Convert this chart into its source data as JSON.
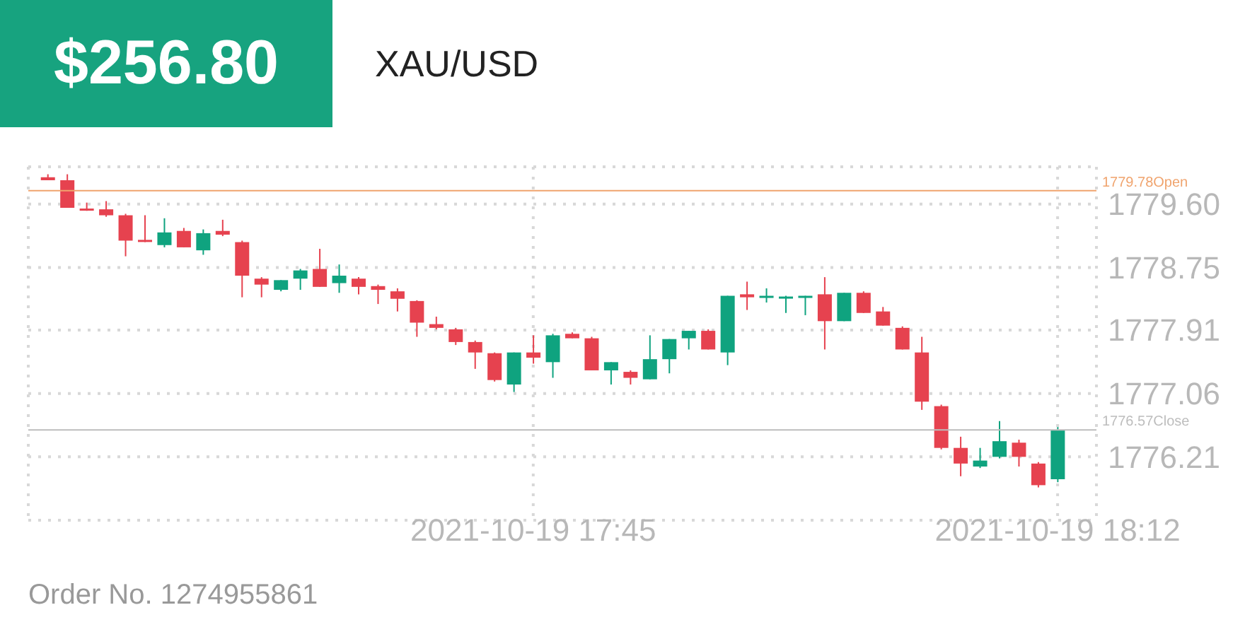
{
  "chart_data": {
    "type": "candlestick",
    "title": "XAU/USD",
    "annotations": [
      "$256.80",
      "Order No. 1274955861"
    ],
    "x": [
      "2021-10-19T17:20",
      "2021-10-19T17:21",
      "2021-10-19T17:22",
      "2021-10-19T17:23",
      "2021-10-19T17:24",
      "2021-10-19T17:25",
      "2021-10-19T17:26",
      "2021-10-19T17:27",
      "2021-10-19T17:28",
      "2021-10-19T17:29",
      "2021-10-19T17:30",
      "2021-10-19T17:31",
      "2021-10-19T17:32",
      "2021-10-19T17:33",
      "2021-10-19T17:34",
      "2021-10-19T17:35",
      "2021-10-19T17:36",
      "2021-10-19T17:37",
      "2021-10-19T17:38",
      "2021-10-19T17:39",
      "2021-10-19T17:40",
      "2021-10-19T17:41",
      "2021-10-19T17:42",
      "2021-10-19T17:43",
      "2021-10-19T17:44",
      "2021-10-19T17:45",
      "2021-10-19T17:46",
      "2021-10-19T17:47",
      "2021-10-19T17:48",
      "2021-10-19T17:49",
      "2021-10-19T17:50",
      "2021-10-19T17:51",
      "2021-10-19T17:52",
      "2021-10-19T17:53",
      "2021-10-19T17:54",
      "2021-10-19T17:55",
      "2021-10-19T17:56",
      "2021-10-19T17:57",
      "2021-10-19T17:58",
      "2021-10-19T17:59",
      "2021-10-19T18:00",
      "2021-10-19T18:01",
      "2021-10-19T18:02",
      "2021-10-19T18:03",
      "2021-10-19T18:04",
      "2021-10-19T18:05",
      "2021-10-19T18:06",
      "2021-10-19T18:07",
      "2021-10-19T18:08",
      "2021-10-19T18:09",
      "2021-10-19T18:10",
      "2021-10-19T18:11",
      "2021-10-19T18:12"
    ],
    "ohlc": [
      [
        1779.96,
        1780.0,
        1779.92,
        1779.92
      ],
      [
        1779.92,
        1780.0,
        1779.55,
        1779.55
      ],
      [
        1779.54,
        1779.62,
        1779.51,
        1779.52
      ],
      [
        1779.53,
        1779.64,
        1779.43,
        1779.45
      ],
      [
        1779.45,
        1779.47,
        1778.9,
        1779.11
      ],
      [
        1779.12,
        1779.45,
        1779.09,
        1779.1
      ],
      [
        1779.05,
        1779.41,
        1779.02,
        1779.22
      ],
      [
        1779.24,
        1779.28,
        1779.02,
        1779.02
      ],
      [
        1778.98,
        1779.26,
        1778.92,
        1779.21
      ],
      [
        1779.24,
        1779.39,
        1779.17,
        1779.19
      ],
      [
        1779.09,
        1779.11,
        1778.35,
        1778.64
      ],
      [
        1778.6,
        1778.62,
        1778.35,
        1778.52
      ],
      [
        1778.45,
        1778.58,
        1778.43,
        1778.58
      ],
      [
        1778.6,
        1778.73,
        1778.45,
        1778.71
      ],
      [
        1778.73,
        1779.0,
        1778.49,
        1778.49
      ],
      [
        1778.54,
        1778.79,
        1778.41,
        1778.64
      ],
      [
        1778.6,
        1778.62,
        1778.39,
        1778.49
      ],
      [
        1778.5,
        1778.52,
        1778.26,
        1778.45
      ],
      [
        1778.43,
        1778.47,
        1778.16,
        1778.33
      ],
      [
        1778.3,
        1778.31,
        1777.82,
        1778.01
      ],
      [
        1777.99,
        1778.09,
        1777.92,
        1777.94
      ],
      [
        1777.92,
        1777.94,
        1777.71,
        1777.75
      ],
      [
        1777.75,
        1777.77,
        1777.39,
        1777.61
      ],
      [
        1777.6,
        1777.61,
        1777.22,
        1777.24
      ],
      [
        1777.18,
        1777.61,
        1777.08,
        1777.61
      ],
      [
        1777.61,
        1777.84,
        1777.46,
        1777.54
      ],
      [
        1777.48,
        1777.86,
        1777.27,
        1777.84
      ],
      [
        1777.86,
        1777.88,
        1777.8,
        1777.8
      ],
      [
        1777.8,
        1777.82,
        1777.37,
        1777.37
      ],
      [
        1777.37,
        1777.48,
        1777.18,
        1777.48
      ],
      [
        1777.35,
        1777.37,
        1777.18,
        1777.27
      ],
      [
        1777.25,
        1777.84,
        1777.25,
        1777.52
      ],
      [
        1777.52,
        1777.79,
        1777.33,
        1777.79
      ],
      [
        1777.8,
        1777.9,
        1777.65,
        1777.9
      ],
      [
        1777.9,
        1777.92,
        1777.65,
        1777.65
      ],
      [
        1777.61,
        1778.37,
        1777.44,
        1778.37
      ],
      [
        1778.39,
        1778.56,
        1778.18,
        1778.35
      ],
      [
        1778.36,
        1778.47,
        1778.28,
        1778.37
      ],
      [
        1778.35,
        1778.37,
        1778.14,
        1778.36
      ],
      [
        1778.36,
        1778.37,
        1778.11,
        1778.37
      ],
      [
        1778.39,
        1778.62,
        1777.65,
        1778.03
      ],
      [
        1778.03,
        1778.41,
        1778.03,
        1778.41
      ],
      [
        1778.41,
        1778.43,
        1778.14,
        1778.14
      ],
      [
        1778.16,
        1778.22,
        1777.97,
        1777.97
      ],
      [
        1777.94,
        1777.96,
        1777.65,
        1777.65
      ],
      [
        1777.61,
        1777.82,
        1776.84,
        1776.95
      ],
      [
        1776.89,
        1776.91,
        1776.31,
        1776.33
      ],
      [
        1776.33,
        1776.48,
        1775.95,
        1776.12
      ],
      [
        1776.08,
        1776.33,
        1776.06,
        1776.16
      ],
      [
        1776.21,
        1776.69,
        1776.19,
        1776.42
      ],
      [
        1776.4,
        1776.44,
        1776.08,
        1776.21
      ],
      [
        1776.12,
        1776.14,
        1775.8,
        1775.83
      ],
      [
        1775.91,
        1776.61,
        1775.87,
        1776.57
      ]
    ],
    "colors": [
      "#e6424f",
      "#e6424f",
      "#e6424f",
      "#e6424f",
      "#e6424f",
      "#e6424f",
      "#0fa37f",
      "#e6424f",
      "#0fa37f",
      "#e6424f",
      "#e6424f",
      "#e6424f",
      "#0fa37f",
      "#0fa37f",
      "#e6424f",
      "#0fa37f",
      "#e6424f",
      "#e6424f",
      "#e6424f",
      "#e6424f",
      "#e6424f",
      "#e6424f",
      "#e6424f",
      "#e6424f",
      "#0fa37f",
      "#e6424f",
      "#0fa37f",
      "#e6424f",
      "#e6424f",
      "#0fa37f",
      "#e6424f",
      "#0fa37f",
      "#0fa37f",
      "#0fa37f",
      "#e6424f",
      "#0fa37f",
      "#e6424f",
      "#0fa37f",
      "#0fa37f",
      "#0fa37f",
      "#e6424f",
      "#0fa37f",
      "#e6424f",
      "#e6424f",
      "#e6424f",
      "#e6424f",
      "#e6424f",
      "#e6424f",
      "#0fa37f",
      "#0fa37f",
      "#e6424f",
      "#e6424f",
      "#0fa37f"
    ],
    "xlim": [
      "2021-10-19T17:19",
      "2021-10-19T18:14"
    ],
    "xticks": [
      {
        "value": "2021-10-19T17:45",
        "label": "2021-10-19 17:45"
      },
      {
        "value": "2021-10-19T18:12",
        "label": "2021-10-19 18:12"
      }
    ],
    "ylim": [
      1775.36,
      1780.1
    ],
    "yticks": [
      {
        "value": 1775.36,
        "label": null
      },
      {
        "value": 1776.21,
        "label": "1776.21"
      },
      {
        "value": 1777.06,
        "label": "1777.06"
      },
      {
        "value": 1777.91,
        "label": "1777.91"
      },
      {
        "value": 1778.75,
        "label": "1778.75"
      },
      {
        "value": 1779.6,
        "label": "1779.60"
      }
    ],
    "ref_lines": [
      {
        "axis": "y",
        "value": 1779.78,
        "label": "1779.78Open",
        "color": "#f0a46e"
      },
      {
        "axis": "y",
        "value": 1776.57,
        "label": "1776.57Close",
        "color": "#bdbdbd"
      }
    ],
    "grid": true
  }
}
